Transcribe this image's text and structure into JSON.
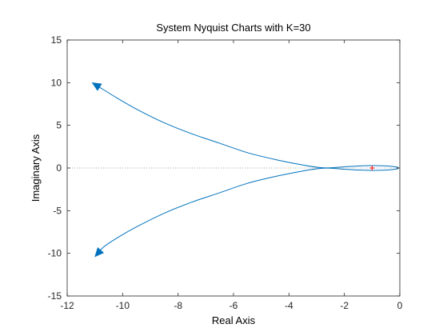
{
  "chart_data": {
    "type": "line",
    "title": "System Nyquist Charts with K=30",
    "xlabel": "Real Axis",
    "ylabel": "Imaginary Axis",
    "xlim": [
      -12,
      0
    ],
    "ylim": [
      -15,
      15
    ],
    "xticks": [
      -12,
      -10,
      -8,
      -6,
      -4,
      -2,
      0
    ],
    "yticks": [
      -15,
      -10,
      -5,
      0,
      5,
      10,
      15
    ],
    "grid": false,
    "critical_point": [
      -1,
      0
    ],
    "series": [
      {
        "color": "#0072BD",
        "x": [
          -0.05,
          -0.12,
          -0.3,
          -0.6,
          -1.0,
          -1.5,
          -2.0,
          -2.5,
          -2.9,
          -3.5,
          -4.5,
          -5.5,
          -6.5,
          -7.5,
          -8.5,
          -9.5,
          -10.2,
          -10.7,
          -11.1
        ],
        "y": [
          0.05,
          0.12,
          0.2,
          0.26,
          0.28,
          0.24,
          0.14,
          0.02,
          0.06,
          0.35,
          1.0,
          1.8,
          2.9,
          4.0,
          5.3,
          6.9,
          8.2,
          9.2,
          10.0
        ]
      },
      {
        "color": "#0072BD",
        "x": [
          -0.05,
          -0.12,
          -0.3,
          -0.6,
          -1.0,
          -1.5,
          -2.0,
          -2.5,
          -2.9,
          -3.5,
          -4.5,
          -5.5,
          -6.5,
          -7.5,
          -8.5,
          -9.5,
          -10.2,
          -10.7,
          -11.0
        ],
        "y": [
          -0.05,
          -0.12,
          -0.2,
          -0.26,
          -0.28,
          -0.24,
          -0.14,
          -0.02,
          -0.06,
          -0.35,
          -1.0,
          -1.8,
          -2.9,
          -4.0,
          -5.3,
          -6.9,
          -8.2,
          -9.3,
          -10.4
        ]
      }
    ],
    "arrow_color": "#0072BD",
    "critical_marker_color": "#FF0000",
    "zero_line_color": "#888888"
  }
}
